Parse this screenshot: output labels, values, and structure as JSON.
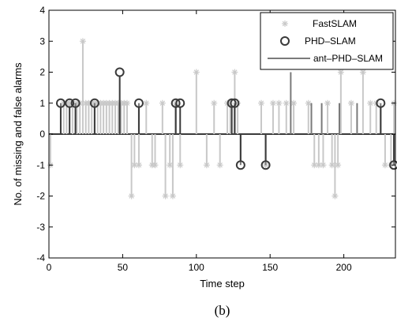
{
  "caption": "(b)",
  "colors": {
    "fastslam": "#c8c8c8",
    "phd": "#3a3a3a",
    "ant": "#7a7a7a",
    "axis": "#000000",
    "background": "#ffffff"
  },
  "chart_data": {
    "type": "stem",
    "title": "",
    "xlabel": "Time step",
    "ylabel": "No. of missing and false alarms",
    "xlim": [
      0,
      235
    ],
    "ylim": [
      -4,
      4
    ],
    "xticks": [
      0,
      50,
      100,
      150,
      200
    ],
    "yticks": [
      -4,
      -3,
      -2,
      -1,
      0,
      1,
      2,
      3,
      4
    ],
    "legend": {
      "position": "top-right",
      "entries": [
        "FastSLAM",
        "PHD–SLAM",
        "ant–PHD–SLAM"
      ]
    },
    "series": [
      {
        "name": "FastSLAM",
        "marker": "asterisk",
        "points": [
          [
            1,
            -1
          ],
          [
            10,
            1
          ],
          [
            12,
            1
          ],
          [
            14,
            1
          ],
          [
            16,
            1
          ],
          [
            19,
            1
          ],
          [
            21,
            1
          ],
          [
            23,
            3
          ],
          [
            25,
            1
          ],
          [
            27,
            1
          ],
          [
            29,
            1
          ],
          [
            31,
            1
          ],
          [
            33,
            1
          ],
          [
            35,
            1
          ],
          [
            37,
            1
          ],
          [
            39,
            1
          ],
          [
            41,
            1
          ],
          [
            43,
            1
          ],
          [
            45,
            1
          ],
          [
            47,
            1
          ],
          [
            49,
            1
          ],
          [
            51,
            1
          ],
          [
            53,
            1
          ],
          [
            56,
            -2
          ],
          [
            58,
            -1
          ],
          [
            61,
            -1
          ],
          [
            66,
            1
          ],
          [
            70,
            -1
          ],
          [
            72,
            -1
          ],
          [
            77,
            1
          ],
          [
            79,
            -2
          ],
          [
            82,
            -1
          ],
          [
            84,
            -2
          ],
          [
            86,
            1
          ],
          [
            89,
            -1
          ],
          [
            100,
            2
          ],
          [
            107,
            -1
          ],
          [
            112,
            1
          ],
          [
            116,
            -1
          ],
          [
            121,
            1
          ],
          [
            123,
            1
          ],
          [
            126,
            2
          ],
          [
            128,
            1
          ],
          [
            144,
            1
          ],
          [
            147,
            -1
          ],
          [
            152,
            1
          ],
          [
            156,
            1
          ],
          [
            161,
            1
          ],
          [
            166,
            1
          ],
          [
            176,
            1
          ],
          [
            180,
            -1
          ],
          [
            183,
            -1
          ],
          [
            186,
            -1
          ],
          [
            189,
            1
          ],
          [
            192,
            -1
          ],
          [
            194,
            -2
          ],
          [
            196,
            -1
          ],
          [
            198,
            2
          ],
          [
            205,
            1
          ],
          [
            213,
            2
          ],
          [
            218,
            1
          ],
          [
            222,
            1
          ],
          [
            228,
            -1
          ],
          [
            232,
            -1
          ],
          [
            234,
            1
          ]
        ]
      },
      {
        "name": "PHD–SLAM",
        "marker": "circle",
        "points": [
          [
            8,
            1
          ],
          [
            14,
            1
          ],
          [
            18,
            1
          ],
          [
            31,
            1
          ],
          [
            48,
            2
          ],
          [
            61,
            1
          ],
          [
            86,
            1
          ],
          [
            89,
            1
          ],
          [
            124,
            1
          ],
          [
            126,
            1
          ],
          [
            130,
            -1
          ],
          [
            147,
            -1
          ],
          [
            225,
            1
          ],
          [
            234,
            -1
          ]
        ]
      },
      {
        "name": "ant–PHD–SLAM",
        "marker": "none",
        "points": [
          [
            8,
            1
          ],
          [
            18,
            1
          ],
          [
            31,
            1
          ],
          [
            48,
            1
          ],
          [
            61,
            1
          ],
          [
            86,
            1
          ],
          [
            126,
            1
          ],
          [
            130,
            -1
          ],
          [
            147,
            -1
          ],
          [
            164,
            2
          ],
          [
            178,
            1
          ],
          [
            185,
            1
          ],
          [
            197,
            1
          ],
          [
            209,
            1
          ],
          [
            225,
            1
          ],
          [
            234,
            -1
          ]
        ]
      }
    ]
  }
}
